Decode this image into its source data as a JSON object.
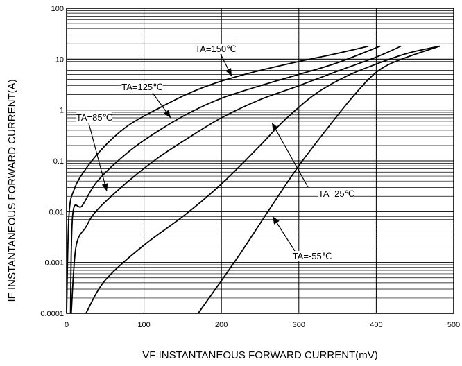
{
  "chart_data": {
    "type": "line",
    "ylabel": "IF INSTANTANEOUS FORWARD CURRENT(A)",
    "xlabel": "VF INSTANTANEOUS FORWARD CURRENT(mV)",
    "x_range": [
      0,
      500
    ],
    "y_range": [
      0.0001,
      100
    ],
    "y_scale": "log",
    "grid": true,
    "x_ticks": [
      {
        "value": 0,
        "label": "0"
      },
      {
        "value": 100,
        "label": "100"
      },
      {
        "value": 200,
        "label": "200"
      },
      {
        "value": 300,
        "label": "300"
      },
      {
        "value": 400,
        "label": "400"
      },
      {
        "value": 500,
        "label": "500"
      }
    ],
    "y_ticks": [
      {
        "value": 0.0001,
        "label": "0.0001"
      },
      {
        "value": 0.001,
        "label": "0.001"
      },
      {
        "value": 0.01,
        "label": "0.01"
      },
      {
        "value": 0.1,
        "label": "0.1"
      },
      {
        "value": 1,
        "label": "1"
      },
      {
        "value": 10,
        "label": "10"
      },
      {
        "value": 100,
        "label": "100"
      }
    ],
    "series": [
      {
        "name": "TA=150℃",
        "x": [
          0,
          3,
          10,
          25,
          50,
          80,
          120,
          160,
          200,
          250,
          300,
          350,
          390
        ],
        "y": [
          0.0001,
          0.008,
          0.028,
          0.07,
          0.2,
          0.5,
          1.1,
          2.2,
          3.7,
          6.0,
          9.0,
          13,
          18
        ]
      },
      {
        "name": "TA=125℃",
        "x": [
          5,
          8,
          20,
          40,
          80,
          120,
          160,
          200,
          250,
          300,
          350,
          405
        ],
        "y": [
          0.0001,
          0.009,
          0.013,
          0.04,
          0.15,
          0.4,
          0.9,
          1.7,
          3.0,
          5.0,
          8.5,
          18
        ]
      },
      {
        "name": "TA=85℃",
        "x": [
          6,
          12,
          25,
          40,
          80,
          120,
          160,
          200,
          250,
          300,
          350,
          400,
          432
        ],
        "y": [
          0.0001,
          0.002,
          0.005,
          0.011,
          0.04,
          0.12,
          0.3,
          0.7,
          1.6,
          3.0,
          5.8,
          11,
          18
        ]
      },
      {
        "name": "TA=25℃",
        "x": [
          25,
          50,
          100,
          150,
          200,
          250,
          280,
          320,
          360,
          400,
          440,
          482
        ],
        "y": [
          0.0001,
          0.00045,
          0.0022,
          0.008,
          0.035,
          0.2,
          0.6,
          2.0,
          4.5,
          8.0,
          13,
          18
        ]
      },
      {
        "name": "TA=-55℃",
        "x": [
          170,
          220,
          260,
          300,
          340,
          365,
          390,
          410,
          440,
          482
        ],
        "y": [
          0.0001,
          0.0012,
          0.01,
          0.08,
          0.5,
          1.5,
          4.0,
          7.0,
          11,
          18
        ]
      }
    ],
    "annotations": [
      {
        "text": "TA=150℃",
        "series": "TA=150℃"
      },
      {
        "text": "TA=125℃",
        "series": "TA=125℃"
      },
      {
        "text": "TA=85℃",
        "series": "TA=85℃"
      },
      {
        "text": "TA=25℃",
        "series": "TA=25℃"
      },
      {
        "text": "TA=-55℃",
        "series": "TA=-55℃"
      }
    ]
  }
}
